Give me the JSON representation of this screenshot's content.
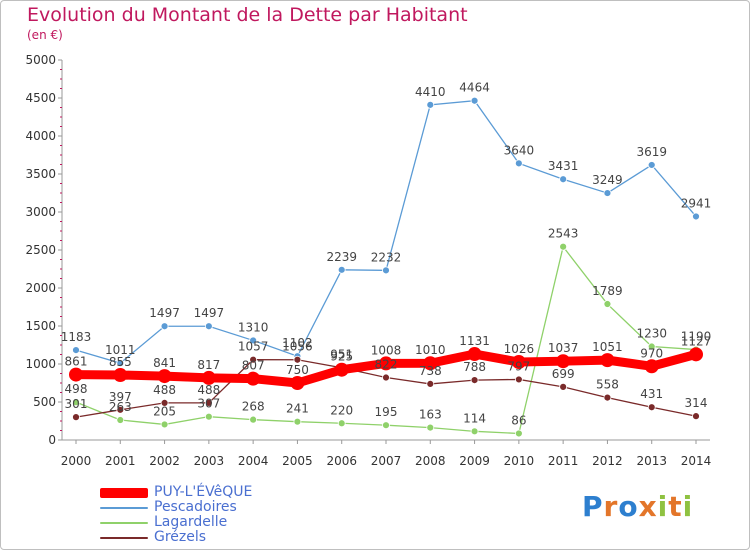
{
  "chart_data": {
    "type": "line",
    "title": "Evolution du Montant de la Dette par Habitant",
    "subtitle": "(en €)",
    "xlabel": "",
    "ylabel": "",
    "x": [
      "2000",
      "2001",
      "2002",
      "2003",
      "2004",
      "2005",
      "2006",
      "2007",
      "2008",
      "2009",
      "2010",
      "2011",
      "2012",
      "2013",
      "2014"
    ],
    "ylim": [
      0,
      5000
    ],
    "yticks": [
      "0",
      "500",
      "1000",
      "1500",
      "2000",
      "2500",
      "3000",
      "3500",
      "4000",
      "4500",
      "5000"
    ],
    "grid": false,
    "legend_position": "bottom-left",
    "series": [
      {
        "name": "Pescadoires",
        "color": "#5b9bd5",
        "values": [
          1183,
          1011,
          1497,
          1497,
          1310,
          1102,
          2239,
          2232,
          4410,
          4464,
          3640,
          3431,
          3249,
          3619,
          2941
        ],
        "labels": [
          "1183",
          "1011",
          "1497",
          "1497",
          "1310",
          "1102",
          "2239",
          "2232",
          "4410",
          "4464",
          "3640",
          "3431",
          "3249",
          "3619",
          "2941"
        ]
      },
      {
        "name": "Lagardelle",
        "color": "#8fd16a",
        "values": [
          498,
          263,
          205,
          307,
          268,
          241,
          220,
          195,
          163,
          114,
          86,
          2543,
          1789,
          1230,
          1190
        ],
        "labels": [
          "498",
          "263",
          "205",
          "307",
          "268",
          "241",
          "220",
          "195",
          "163",
          "114",
          "86",
          "2543",
          "1789",
          "1230",
          "1190"
        ]
      },
      {
        "name": "Grézels",
        "color": "#7a2a2a",
        "values": [
          301,
          397,
          488,
          488,
          1057,
          1056,
          951,
          822,
          738,
          788,
          797,
          699,
          558,
          431,
          314
        ],
        "labels": [
          "301",
          "397",
          "488",
          "488",
          "1057",
          "1056",
          "951",
          "822",
          "738",
          "788",
          "797",
          "699",
          "558",
          "431",
          "314"
        ]
      },
      {
        "name": "PUY-L'ÉVêQUE",
        "color": "#ff0000",
        "values": [
          861,
          855,
          841,
          817,
          807,
          750,
          925,
          1008,
          1010,
          1131,
          1026,
          1037,
          1051,
          970,
          1127
        ],
        "labels": [
          "861",
          "855",
          "841",
          "817",
          "807",
          "750",
          "925",
          "1008",
          "1010",
          "1131",
          "1026",
          "1037",
          "1051",
          "970",
          "1127"
        ]
      }
    ],
    "legend_order": [
      "PUY-L'ÉVêQUE",
      "Pescadoires",
      "Lagardelle",
      "Grézels"
    ]
  },
  "legend": [
    {
      "label": "PUY-L'ÉVêQUE",
      "color": "#ff0000"
    },
    {
      "label": "Pescadoires",
      "color": "#5b9bd5"
    },
    {
      "label": "Lagardelle",
      "color": "#8fd16a"
    },
    {
      "label": "Grézels",
      "color": "#7a2a2a"
    }
  ],
  "logo": {
    "text": "Proxiti"
  }
}
